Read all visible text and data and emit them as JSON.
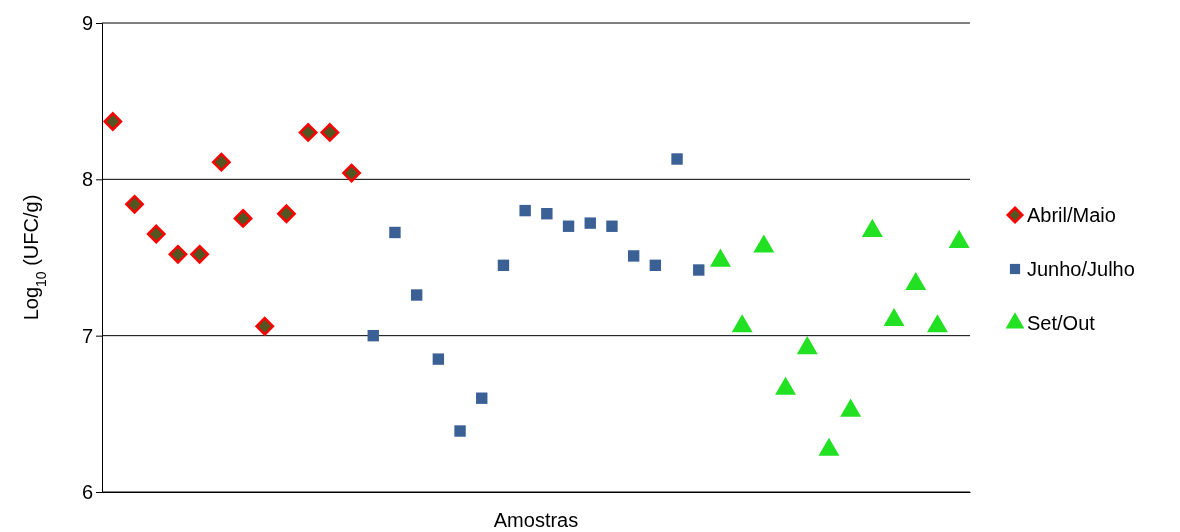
{
  "chart_data": {
    "type": "scatter",
    "xlabel": "Amostras",
    "ylabel": "Log$_{10}$ (UFC/g)",
    "categories": [
      null,
      null,
      null,
      null,
      null,
      null,
      null,
      null,
      null,
      null,
      null,
      null,
      null,
      null,
      null,
      null,
      null,
      null,
      null,
      null,
      null,
      null,
      null,
      null,
      null,
      null,
      null,
      null,
      null,
      null,
      null,
      null,
      null,
      null,
      null,
      null,
      null,
      null,
      null,
      null
    ],
    "ylim": [
      6,
      9
    ],
    "yticks": [
      6,
      7,
      8,
      9
    ],
    "grid": "y",
    "legend": "right",
    "series": [
      {
        "name": "Abril/Maio",
        "color": "#ff0000",
        "marker": "diamond",
        "values": [
          8.37,
          7.84,
          7.65,
          7.52,
          7.52,
          8.11,
          7.75,
          7.06,
          7.78,
          8.3,
          8.3,
          8.04,
          null,
          null,
          null,
          null,
          null,
          null,
          null,
          null,
          null,
          null,
          null,
          null,
          null,
          null,
          null,
          null,
          null,
          null,
          null,
          null,
          null,
          null,
          null,
          null,
          null,
          null,
          null,
          null
        ]
      },
      {
        "name": "Junho/Julho",
        "color": "#3a6096",
        "marker": "square",
        "values": [
          null,
          null,
          null,
          null,
          null,
          null,
          null,
          null,
          null,
          null,
          null,
          null,
          7.0,
          7.66,
          7.26,
          6.85,
          6.39,
          6.6,
          7.45,
          7.8,
          7.78,
          7.7,
          7.72,
          7.7,
          7.51,
          7.45,
          8.13,
          7.42,
          null,
          null,
          null,
          null,
          null,
          null,
          null,
          null,
          null,
          null,
          null,
          null
        ]
      },
      {
        "name": "Set/Out",
        "color": "#22e022",
        "marker": "triangle",
        "values": [
          null,
          null,
          null,
          null,
          null,
          null,
          null,
          null,
          null,
          null,
          null,
          null,
          null,
          null,
          null,
          null,
          null,
          null,
          null,
          null,
          null,
          null,
          null,
          null,
          null,
          null,
          null,
          null,
          7.48,
          7.06,
          7.57,
          6.66,
          6.92,
          6.27,
          6.52,
          7.67,
          7.1,
          7.33,
          7.06,
          7.6
        ]
      }
    ]
  }
}
